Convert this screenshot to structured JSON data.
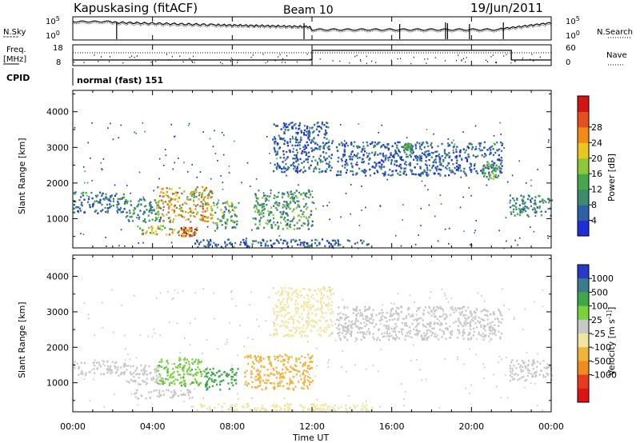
{
  "header": {
    "station": "Kapuskasing (fitACF)",
    "beam": "Beam 10",
    "date": "19/Jun/2011"
  },
  "noise_panel": {
    "left_label": "N.Sky",
    "right_label": "N.Search",
    "tick_top": "10^5",
    "tick_bottom": "10^0"
  },
  "freq_panel": {
    "left_label": "Freq.",
    "left_unit": "[MHz]",
    "right_label": "Nave",
    "left_ticks": [
      "18",
      "8"
    ],
    "right_ticks": [
      "60",
      "0"
    ],
    "nave_steps": [
      {
        "start_h": 0,
        "end_h": 12,
        "level": 0
      },
      {
        "start_h": 12,
        "end_h": 22,
        "level": 60
      },
      {
        "start_h": 22,
        "end_h": 24,
        "level": 0
      }
    ]
  },
  "cpid": {
    "label": "CPID",
    "value": "normal (fast) 151"
  },
  "x_axis": {
    "label": "Time UT",
    "ticks": [
      "00:00",
      "04:00",
      "08:00",
      "12:00",
      "16:00",
      "20:00",
      "00:00"
    ],
    "tick_hours": [
      0,
      4,
      8,
      12,
      16,
      20,
      24
    ]
  },
  "chart_data": [
    {
      "type": "heatmap",
      "ylabel": "Slant Range [km]",
      "ylim": [
        180,
        4600
      ],
      "yticks": [
        "1000",
        "2000",
        "3000",
        "4000"
      ],
      "ytick_values": [
        1000,
        2000,
        3000,
        4000
      ],
      "colorbar_label": "Power [dB]",
      "colorbar_ticks": [
        "4",
        "8",
        "12",
        "16",
        "20",
        "24",
        "28"
      ],
      "colorbar_colors": [
        "#1f2fd8",
        "#2f5fa8",
        "#3c8c6c",
        "#46a84a",
        "#8cc83a",
        "#e8c81e",
        "#f08c14",
        "#e6501e",
        "#d21414"
      ],
      "regions": [
        {
          "t0": 0.0,
          "t1": 2.6,
          "r0": 1150,
          "r1": 1750,
          "v": 8
        },
        {
          "t0": 2.6,
          "t1": 4.4,
          "r0": 900,
          "r1": 1550,
          "v": 10
        },
        {
          "t0": 4.2,
          "t1": 7.0,
          "r0": 900,
          "r1": 1900,
          "v": 22
        },
        {
          "t0": 7.0,
          "t1": 8.3,
          "r0": 700,
          "r1": 1500,
          "v": 14
        },
        {
          "t0": 9.0,
          "t1": 12.0,
          "r0": 700,
          "r1": 1800,
          "v": 12
        },
        {
          "t0": 3.2,
          "t1": 5.8,
          "r0": 550,
          "r1": 800,
          "v": 20
        },
        {
          "t0": 5.4,
          "t1": 6.2,
          "r0": 500,
          "r1": 750,
          "v": 28
        },
        {
          "t0": 10.0,
          "t1": 13.0,
          "r0": 2300,
          "r1": 3700,
          "v": 6
        },
        {
          "t0": 13.2,
          "t1": 21.5,
          "r0": 2200,
          "r1": 3150,
          "v": 6
        },
        {
          "t0": 20.5,
          "t1": 21.3,
          "r0": 2100,
          "r1": 2550,
          "v": 14
        },
        {
          "t0": 16.6,
          "t1": 17.0,
          "r0": 2900,
          "r1": 3100,
          "v": 12
        },
        {
          "t0": 21.9,
          "t1": 24.0,
          "r0": 1050,
          "r1": 1650,
          "v": 10
        },
        {
          "t0": 6.0,
          "t1": 15.0,
          "r0": 200,
          "r1": 420,
          "v": 6
        }
      ]
    },
    {
      "type": "heatmap",
      "ylabel": "Slant Range [km]",
      "ylim": [
        180,
        4600
      ],
      "yticks": [
        "1000",
        "2000",
        "3000",
        "4000"
      ],
      "ytick_values": [
        1000,
        2000,
        3000,
        4000
      ],
      "colorbar_label": "Velocity [m s^-1]",
      "colorbar_ticks": [
        "1000",
        "500",
        "100",
        "25",
        "-25",
        "-100",
        "-500",
        "-1000"
      ],
      "colorbar_colors": [
        "#2838c8",
        "#3c7a8c",
        "#3ca84a",
        "#78d23c",
        "#c8c8c8",
        "#f0e6a0",
        "#f0b43c",
        "#f08c1e",
        "#e63c1e",
        "#dc1414"
      ],
      "regions": [
        {
          "t0": 0.0,
          "t1": 2.6,
          "r0": 1200,
          "r1": 1600,
          "v": 0
        },
        {
          "t0": 2.6,
          "t1": 4.4,
          "r0": 950,
          "r1": 1500,
          "v": 0
        },
        {
          "t0": 4.2,
          "t1": 6.6,
          "r0": 900,
          "r1": 1700,
          "v": 80
        },
        {
          "t0": 6.6,
          "t1": 8.3,
          "r0": 800,
          "r1": 1400,
          "v": 150
        },
        {
          "t0": 8.6,
          "t1": 12.0,
          "r0": 800,
          "r1": 1800,
          "v": -300
        },
        {
          "t0": 3.0,
          "t1": 6.0,
          "r0": 550,
          "r1": 800,
          "v": 0
        },
        {
          "t0": 10.0,
          "t1": 13.0,
          "r0": 2300,
          "r1": 3700,
          "v": -40
        },
        {
          "t0": 13.2,
          "t1": 21.5,
          "r0": 2200,
          "r1": 3150,
          "v": 0
        },
        {
          "t0": 21.9,
          "t1": 24.0,
          "r0": 1050,
          "r1": 1650,
          "v": 0
        },
        {
          "t0": 6.0,
          "t1": 15.0,
          "r0": 200,
          "r1": 420,
          "v": -40
        }
      ]
    }
  ]
}
